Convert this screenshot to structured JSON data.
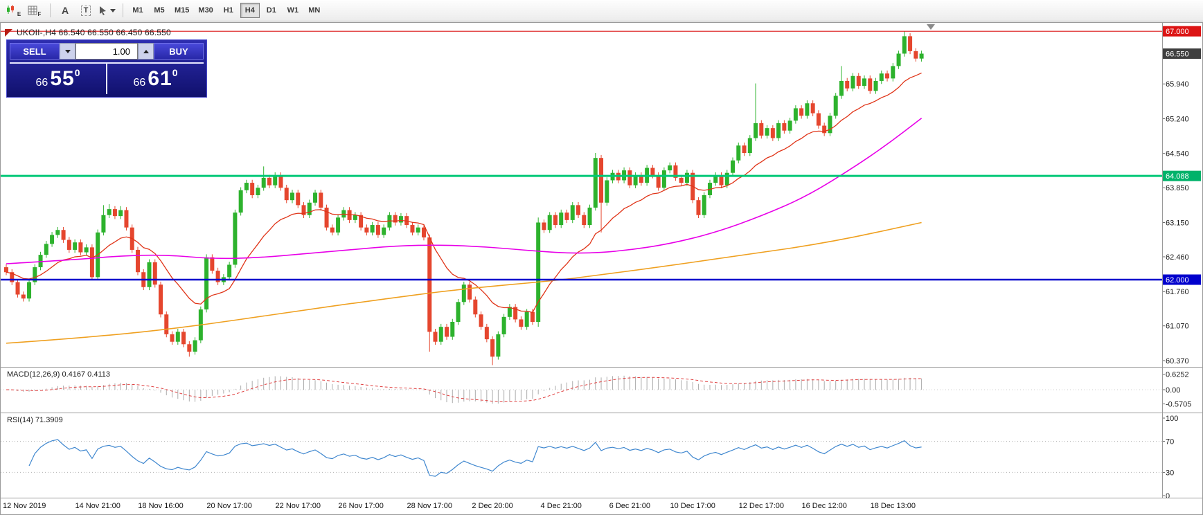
{
  "toolbar": {
    "icons": {
      "expert_letter": "E",
      "template_letter": "F",
      "font_letter": "A",
      "text_letter": "T"
    },
    "timeframes": [
      {
        "label": "M1"
      },
      {
        "label": "M5"
      },
      {
        "label": "M15"
      },
      {
        "label": "M30"
      },
      {
        "label": "H1"
      },
      {
        "label": "H4"
      },
      {
        "label": "D1"
      },
      {
        "label": "W1"
      },
      {
        "label": "MN"
      }
    ],
    "active_timeframe": "H4"
  },
  "chart": {
    "title": "UKOII-,H4  66.540 66.550 66.450 66.550"
  },
  "trade_panel": {
    "sell_label": "SELL",
    "buy_label": "BUY",
    "volume": "1.00",
    "bid": {
      "big_figure": "66",
      "pips": "55",
      "pipette": "0"
    },
    "ask": {
      "big_figure": "66",
      "pips": "61",
      "pipette": "0"
    }
  },
  "price_scale": {
    "ticks": [
      65.94,
      65.24,
      64.54,
      63.85,
      63.15,
      62.46,
      61.76,
      61.07,
      60.37
    ]
  },
  "chart_data": {
    "type": "candlestick",
    "symbol": "UKOII-",
    "timeframe": "H4",
    "last_ohlc": {
      "open": 66.54,
      "high": 66.55,
      "low": 66.45,
      "close": 66.55
    },
    "bid": 66.55,
    "ask": 66.61,
    "price_range": [
      60.3,
      67.1
    ],
    "colors": {
      "bull": "#2db22d",
      "bear": "#e5462e",
      "ma_fast": "#e03418",
      "ma_mid": "#e800e8",
      "ma_slow": "#efa020",
      "rsi": "#3f87cf",
      "macd_hist": "#ababab",
      "macd_signal": "#e04040"
    },
    "candles": {
      "open_rule": "previous_close",
      "first_open": 62.25,
      "default_wick": 0.06,
      "closes": [
        62.15,
        61.95,
        61.7,
        61.62,
        61.95,
        62.25,
        62.5,
        62.72,
        62.9,
        63.0,
        62.8,
        62.6,
        62.75,
        62.55,
        62.65,
        62.05,
        62.95,
        63.3,
        63.42,
        63.28,
        63.4,
        63.05,
        62.6,
        62.15,
        61.85,
        62.35,
        61.9,
        61.3,
        60.9,
        60.75,
        60.95,
        60.7,
        60.55,
        60.78,
        61.4,
        62.45,
        62.18,
        61.95,
        62.05,
        62.3,
        63.35,
        63.8,
        63.95,
        63.7,
        63.85,
        64.05,
        63.9,
        64.1,
        63.85,
        63.6,
        63.75,
        63.5,
        63.3,
        63.55,
        63.75,
        63.45,
        63.05,
        62.95,
        63.25,
        63.4,
        63.2,
        63.3,
        63.05,
        62.95,
        63.1,
        62.9,
        63.05,
        63.3,
        63.15,
        63.28,
        63.1,
        62.95,
        63.05,
        62.85,
        60.95,
        60.75,
        61.05,
        60.85,
        61.15,
        61.55,
        61.9,
        61.6,
        61.3,
        61.05,
        60.8,
        60.45,
        60.9,
        61.25,
        61.45,
        61.2,
        61.05,
        61.35,
        61.15,
        63.15,
        63.0,
        63.3,
        63.1,
        63.35,
        63.2,
        63.5,
        63.3,
        63.1,
        63.45,
        64.45,
        63.55,
        64.0,
        64.15,
        64.0,
        64.2,
        63.9,
        64.1,
        63.95,
        64.25,
        64.1,
        63.85,
        64.2,
        64.3,
        64.05,
        63.95,
        64.15,
        63.6,
        63.3,
        63.7,
        63.95,
        64.1,
        63.9,
        64.15,
        64.4,
        64.7,
        64.55,
        64.85,
        65.15,
        64.9,
        65.05,
        64.85,
        65.15,
        65.0,
        65.2,
        65.45,
        65.3,
        65.55,
        65.35,
        65.1,
        64.95,
        65.3,
        65.7,
        66.0,
        65.85,
        66.1,
        65.9,
        66.05,
        65.8,
        66.0,
        66.15,
        66.05,
        66.3,
        66.55,
        66.9,
        66.6,
        66.45,
        66.55
      ],
      "wick_overrides": {
        "17": [
          63.5,
          null
        ],
        "18": [
          63.52,
          null
        ],
        "20": [
          63.48,
          null
        ],
        "32": [
          null,
          60.45
        ],
        "45": [
          64.28,
          null
        ],
        "74": [
          null,
          60.55
        ],
        "85": [
          null,
          60.28
        ],
        "93": [
          63.25,
          61.05
        ],
        "103": [
          64.55,
          null
        ],
        "104": [
          null,
          62.95
        ],
        "131": [
          65.95,
          null
        ],
        "146": [
          66.3,
          null
        ],
        "157": [
          67.0,
          null
        ]
      }
    },
    "overlays": {
      "ma_fast": {
        "type": "ema",
        "period": 16
      },
      "ma_mid": {
        "type": "points",
        "points": [
          [
            0,
            62.32
          ],
          [
            12,
            62.4
          ],
          [
            20,
            62.48
          ],
          [
            28,
            62.5
          ],
          [
            36,
            62.42
          ],
          [
            44,
            62.44
          ],
          [
            52,
            62.52
          ],
          [
            60,
            62.6
          ],
          [
            68,
            62.68
          ],
          [
            76,
            62.7
          ],
          [
            84,
            62.66
          ],
          [
            92,
            62.58
          ],
          [
            100,
            62.52
          ],
          [
            108,
            62.58
          ],
          [
            116,
            62.72
          ],
          [
            124,
            62.95
          ],
          [
            132,
            63.28
          ],
          [
            140,
            63.68
          ],
          [
            148,
            64.25
          ],
          [
            154,
            64.72
          ],
          [
            160,
            65.25
          ]
        ]
      },
      "ma_slow": {
        "type": "points",
        "points": [
          [
            0,
            60.72
          ],
          [
            16,
            60.85
          ],
          [
            32,
            61.05
          ],
          [
            48,
            61.32
          ],
          [
            64,
            61.58
          ],
          [
            80,
            61.82
          ],
          [
            96,
            61.98
          ],
          [
            104,
            62.1
          ],
          [
            112,
            62.22
          ],
          [
            128,
            62.48
          ],
          [
            144,
            62.75
          ],
          [
            160,
            63.15
          ]
        ]
      }
    },
    "hlines": [
      {
        "price": 67.0,
        "color": "#dc1414",
        "width": 1.2,
        "label": "67.000",
        "label_bg": "#dc1414"
      },
      {
        "price": 64.088,
        "color": "#00c877",
        "width": 3,
        "label": "64.088",
        "label_bg": "#00b26a"
      },
      {
        "price": 62.0,
        "color": "#0000cd",
        "width": 2.5,
        "label": "62.000",
        "label_bg": "#0000cd"
      }
    ],
    "current_price": {
      "price": 66.55,
      "label": "66.550",
      "label_bg": "#3f3f3f"
    },
    "macd": {
      "label": "MACD(12,26,9) 0.4167 0.4113",
      "fast": 12,
      "slow": 26,
      "signal_period": 9,
      "scale_ticks": [
        {
          "label": "0.6252",
          "value": 0.6252
        },
        {
          "label": "0.00",
          "value": 0
        },
        {
          "label": "-0.5705",
          "value": -0.5705
        }
      ]
    },
    "rsi": {
      "label": "RSI(14) 71.3909",
      "period": 14,
      "levels": [
        {
          "label": "100",
          "value": 100,
          "line": false
        },
        {
          "label": "70",
          "value": 70,
          "line": true
        },
        {
          "label": "30",
          "value": 30,
          "line": true
        },
        {
          "label": "0",
          "value": 0,
          "line": false
        }
      ]
    },
    "time_labels": [
      {
        "index": 0,
        "label": "12 Nov 2019"
      },
      {
        "index": 16,
        "label": "14 Nov 21:00"
      },
      {
        "index": 27,
        "label": "18 Nov 16:00"
      },
      {
        "index": 39,
        "label": "20 Nov 17:00"
      },
      {
        "index": 51,
        "label": "22 Nov 17:00"
      },
      {
        "index": 62,
        "label": "26 Nov 17:00"
      },
      {
        "index": 74,
        "label": "28 Nov 17:00"
      },
      {
        "index": 85,
        "label": "2 Dec 20:00"
      },
      {
        "index": 97,
        "label": "4 Dec 21:00"
      },
      {
        "index": 109,
        "label": "6 Dec 21:00"
      },
      {
        "index": 120,
        "label": "10 Dec 17:00"
      },
      {
        "index": 132,
        "label": "12 Dec 17:00"
      },
      {
        "index": 143,
        "label": "16 Dec 12:00"
      },
      {
        "index": 155,
        "label": "18 Dec 13:00"
      }
    ]
  }
}
